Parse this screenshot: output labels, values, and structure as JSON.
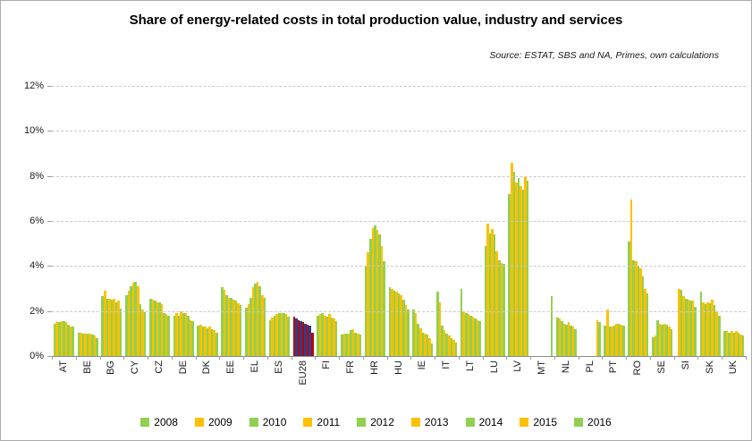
{
  "chart_data": {
    "type": "bar",
    "title": "Share of energy-related costs in total production value, industry and services",
    "source": "Source: ESTAT, SBS and NA, Primes, own calculations",
    "legend_position": "bottom",
    "grid": "dashed-horizontal",
    "years": [
      2008,
      2009,
      2010,
      2011,
      2012,
      2013,
      2014,
      2015,
      2016
    ],
    "colors": {
      "green_series": "#92D050",
      "yellow_series": "#FFC000",
      "highlight_category": "EU28",
      "highlight_green_replacement": "#C00000",
      "highlight_yellow_replacement": "#28418C"
    },
    "y_axis": {
      "max": 12,
      "step": 2,
      "ticks": [
        "0%",
        "2%",
        "4%",
        "6%",
        "8%",
        "10%",
        "12%"
      ],
      "unit": "%"
    },
    "categories": [
      "AT",
      "BE",
      "BG",
      "CY",
      "CZ",
      "DE",
      "DK",
      "EE",
      "EL",
      "ES",
      "EU28",
      "FI",
      "FR",
      "HR",
      "HU",
      "IE",
      "IT",
      "LT",
      "LU",
      "LV",
      "MT",
      "NL",
      "PL",
      "PT",
      "RO",
      "SE",
      "SI",
      "SK",
      "UK"
    ],
    "values": {
      "AT": [
        1.45,
        1.5,
        1.5,
        1.55,
        1.55,
        1.5,
        1.4,
        1.3,
        1.3
      ],
      "BE": [
        1.05,
        1.05,
        1.0,
        1.0,
        1.0,
        1.0,
        0.95,
        0.9,
        0.8
      ],
      "BG": [
        2.65,
        2.9,
        2.55,
        2.55,
        2.5,
        2.55,
        2.4,
        2.45,
        2.1
      ],
      "CY": [
        2.7,
        2.9,
        3.1,
        3.25,
        3.3,
        3.1,
        2.3,
        2.05,
        1.95
      ],
      "CZ": [
        2.55,
        2.5,
        2.45,
        2.4,
        2.4,
        2.3,
        1.9,
        1.85,
        1.8
      ],
      "DE": [
        1.8,
        1.9,
        1.8,
        2.0,
        1.9,
        1.9,
        1.8,
        1.6,
        1.55
      ],
      "DK": [
        1.35,
        1.4,
        1.3,
        1.3,
        1.25,
        1.3,
        1.2,
        1.15,
        1.05
      ],
      "EE": [
        3.05,
        2.95,
        2.7,
        2.6,
        2.6,
        2.5,
        2.45,
        2.35,
        2.25
      ],
      "EL": [
        2.15,
        2.3,
        2.6,
        3.05,
        3.2,
        3.3,
        3.1,
        2.7,
        2.6
      ],
      "ES": [
        1.6,
        1.7,
        1.8,
        1.85,
        1.9,
        1.9,
        1.9,
        1.85,
        1.75
      ],
      "EU28": [
        1.75,
        1.65,
        1.6,
        1.55,
        1.5,
        1.45,
        1.4,
        1.35,
        1.05
      ],
      "FI": [
        1.8,
        1.85,
        1.9,
        1.8,
        1.75,
        1.85,
        1.7,
        1.65,
        1.55
      ],
      "FR": [
        0.95,
        1.0,
        1.0,
        1.0,
        1.15,
        1.2,
        1.05,
        1.0,
        0.95
      ],
      "HR": [
        4.0,
        4.6,
        5.2,
        5.7,
        5.8,
        5.6,
        5.4,
        4.9,
        4.2
      ],
      "HU": [
        3.05,
        3.0,
        2.9,
        2.85,
        2.8,
        2.7,
        2.5,
        2.25,
        2.05
      ],
      "IE": [
        2.05,
        1.9,
        1.45,
        1.25,
        1.05,
        1.0,
        0.95,
        0.8,
        0.55
      ],
      "IT": [
        2.85,
        2.4,
        1.35,
        1.15,
        1.0,
        0.9,
        0.8,
        0.7,
        0.6
      ],
      "LT": [
        3.0,
        1.95,
        1.9,
        1.85,
        1.8,
        1.75,
        1.65,
        1.6,
        1.55
      ],
      "LU": [
        4.9,
        5.9,
        5.45,
        5.65,
        5.4,
        4.65,
        4.25,
        4.15,
        4.1
      ],
      "LV": [
        7.2,
        8.6,
        8.2,
        7.7,
        7.9,
        7.55,
        7.4,
        7.95,
        7.8
      ],
      "MT": [
        null,
        null,
        null,
        null,
        null,
        null,
        null,
        null,
        2.65
      ],
      "NL": [
        1.7,
        1.65,
        1.55,
        1.45,
        1.4,
        1.5,
        1.35,
        1.3,
        1.2
      ],
      "PL": [
        null,
        null,
        null,
        null,
        null,
        null,
        null,
        1.6,
        1.5
      ],
      "PT": [
        1.35,
        2.05,
        1.3,
        1.3,
        1.35,
        1.45,
        1.45,
        1.4,
        1.35
      ],
      "RO": [
        5.1,
        6.95,
        4.25,
        4.2,
        4.0,
        3.9,
        3.55,
        3.0,
        2.8
      ],
      "SE": [
        0.85,
        0.9,
        1.6,
        1.45,
        1.4,
        1.45,
        1.4,
        1.3,
        1.2
      ],
      "SI": [
        null,
        3.0,
        2.95,
        2.65,
        2.55,
        2.5,
        2.45,
        2.45,
        2.2
      ],
      "SK": [
        2.85,
        2.4,
        2.3,
        2.4,
        2.35,
        2.5,
        2.25,
        2.0,
        1.8
      ],
      "UK": [
        1.1,
        1.1,
        1.05,
        1.1,
        1.05,
        1.1,
        1.05,
        0.95,
        0.9
      ]
    }
  }
}
